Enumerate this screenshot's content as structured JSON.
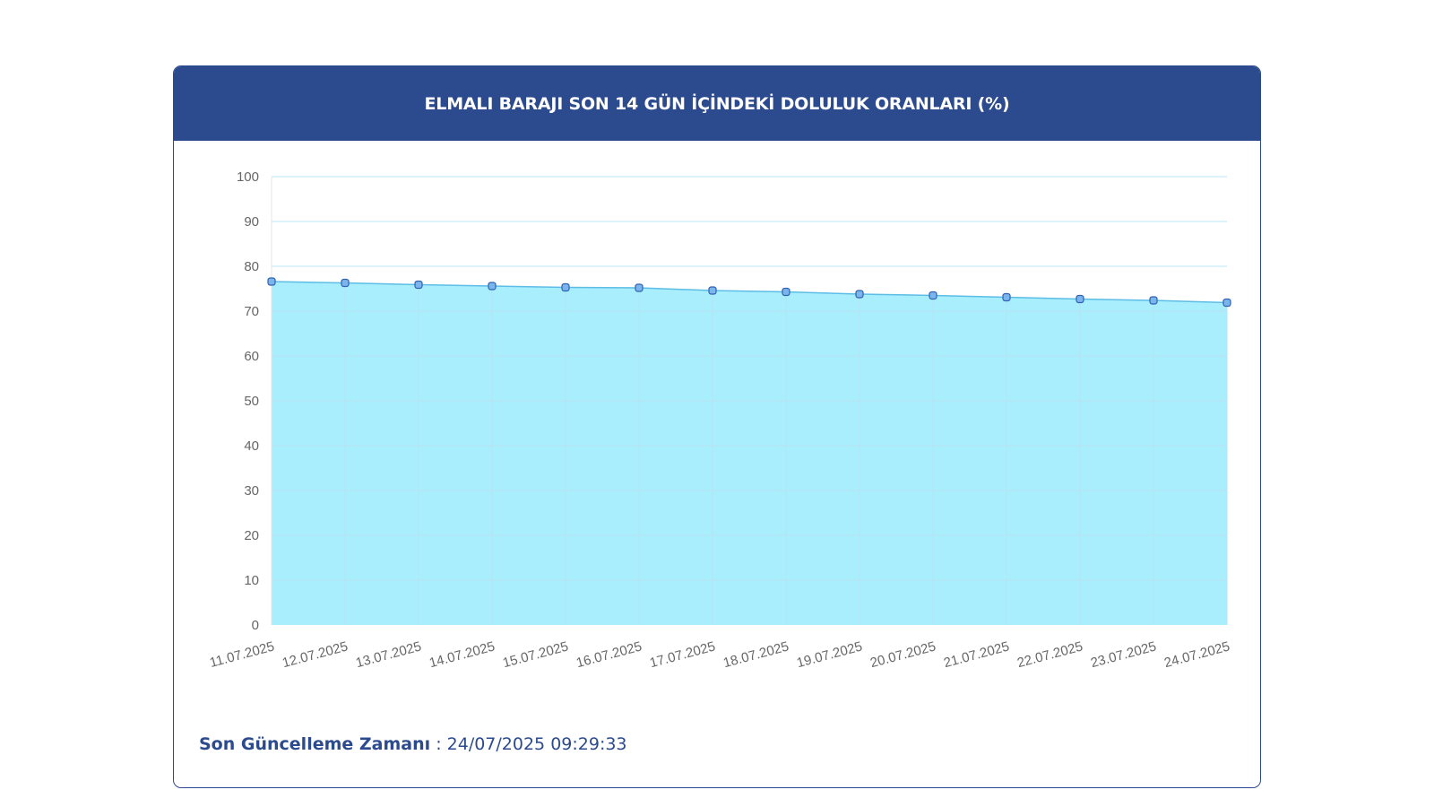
{
  "panel": {
    "title": "ELMALI BARAJI SON 14 GÜN İÇİNDEKİ DOLULUK ORANLARI (%)"
  },
  "footer": {
    "label": "Son Güncelleme Zamanı",
    "separator": " : ",
    "value": "24/07/2025 09:29:33"
  },
  "colors": {
    "header": "#2c4a8e",
    "area_fill": "#a8eefc",
    "line": "#5cbde6",
    "marker_fill": "#7cb5ec",
    "marker_stroke": "#2e62b5",
    "grid": "#b9e3f3"
  },
  "chart_data": {
    "type": "area",
    "title": "ELMALI BARAJI SON 14 GÜN İÇİNDEKİ DOLULUK ORANLARI (%)",
    "xlabel": "",
    "ylabel": "",
    "ylim": [
      0,
      100
    ],
    "yticks": [
      0,
      10,
      20,
      30,
      40,
      50,
      60,
      70,
      80,
      90,
      100
    ],
    "grid": true,
    "legend": "none",
    "categories": [
      "11.07.2025",
      "12.07.2025",
      "13.07.2025",
      "14.07.2025",
      "15.07.2025",
      "16.07.2025",
      "17.07.2025",
      "18.07.2025",
      "19.07.2025",
      "20.07.2025",
      "21.07.2025",
      "22.07.2025",
      "23.07.2025",
      "24.07.2025"
    ],
    "series": [
      {
        "values": [
          76.6,
          76.3,
          75.9,
          75.6,
          75.3,
          75.2,
          74.6,
          74.3,
          73.8,
          73.5,
          73.1,
          72.7,
          72.4,
          71.9
        ]
      }
    ]
  }
}
